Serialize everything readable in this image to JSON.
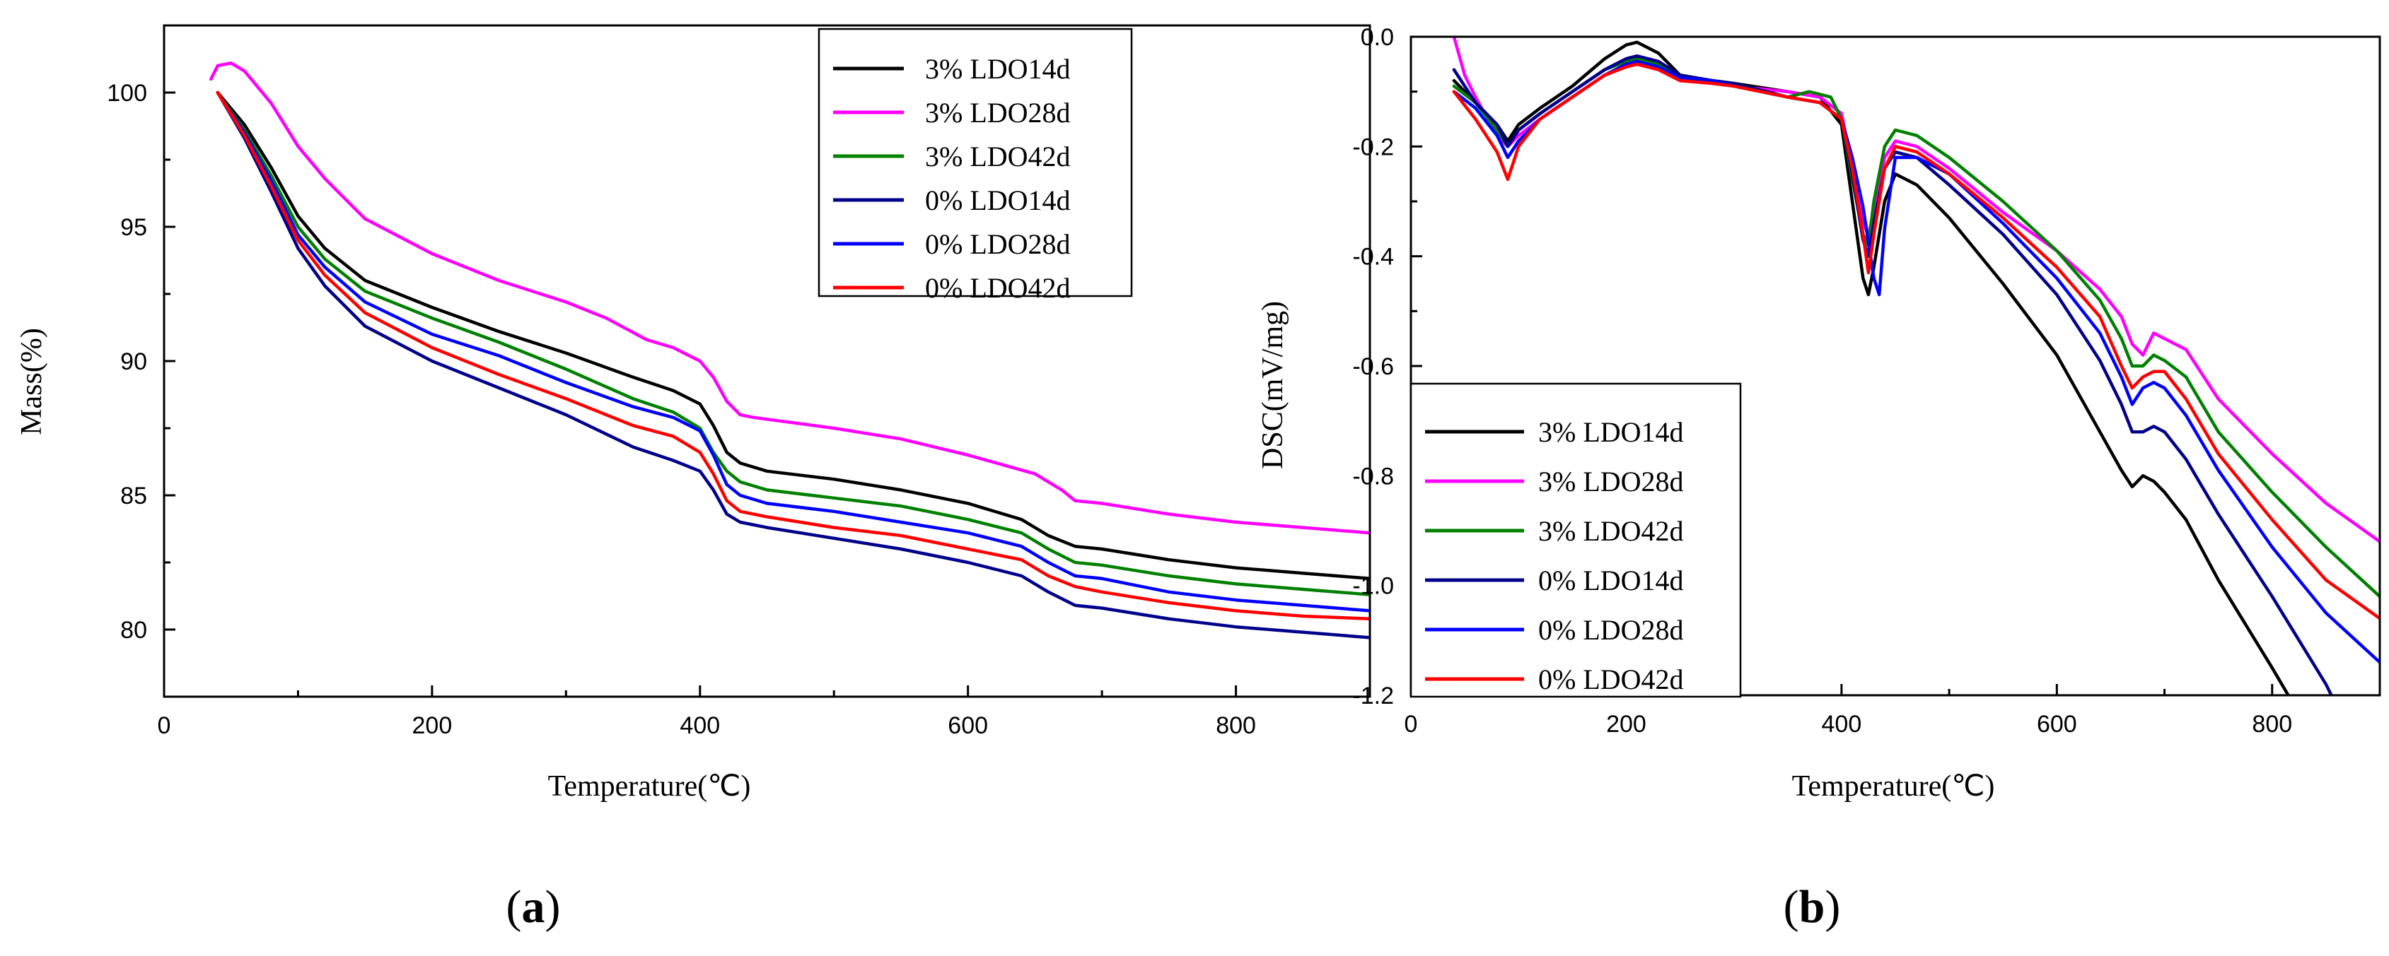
{
  "chart_data": [
    {
      "type": "line",
      "panel": "(a)",
      "panel_letter": "a",
      "xlabel": "Temperature(℃)",
      "ylabel": "Mass(%)",
      "xlim": [
        0,
        900
      ],
      "ylim": [
        77.5,
        102.5
      ],
      "xticks": [
        0,
        200,
        400,
        600,
        800
      ],
      "yticks": [
        80,
        85,
        90,
        95,
        100
      ],
      "legend_position": "top-right",
      "series": [
        {
          "name": "3% LDO14d",
          "color": "#000000",
          "x": [
            40,
            60,
            80,
            100,
            120,
            150,
            200,
            250,
            300,
            350,
            380,
            400,
            410,
            420,
            430,
            450,
            500,
            550,
            600,
            640,
            660,
            680,
            700,
            750,
            800,
            850,
            900
          ],
          "y": [
            100,
            98.8,
            97.2,
            95.4,
            94.2,
            93.0,
            92.0,
            91.1,
            90.3,
            89.4,
            88.9,
            88.4,
            87.6,
            86.6,
            86.2,
            85.9,
            85.6,
            85.2,
            84.7,
            84.1,
            83.5,
            83.1,
            83.0,
            82.6,
            82.3,
            82.1,
            81.9
          ]
        },
        {
          "name": "3% LDO28d",
          "color": "#ff00ff",
          "x": [
            35,
            40,
            50,
            60,
            80,
            100,
            120,
            150,
            200,
            250,
            300,
            330,
            360,
            380,
            400,
            410,
            420,
            430,
            440,
            500,
            550,
            600,
            650,
            670,
            680,
            700,
            750,
            800,
            850,
            900
          ],
          "y": [
            100.5,
            101.0,
            101.1,
            100.8,
            99.6,
            98.0,
            96.8,
            95.3,
            94.0,
            93.0,
            92.2,
            91.6,
            90.8,
            90.5,
            90.0,
            89.4,
            88.5,
            88.0,
            87.9,
            87.5,
            87.1,
            86.5,
            85.8,
            85.2,
            84.8,
            84.7,
            84.3,
            84.0,
            83.8,
            83.6
          ]
        },
        {
          "name": "3% LDO42d",
          "color": "#008000",
          "x": [
            40,
            60,
            80,
            100,
            120,
            150,
            200,
            250,
            300,
            350,
            380,
            400,
            410,
            420,
            430,
            450,
            500,
            550,
            600,
            640,
            660,
            680,
            700,
            750,
            800,
            850,
            900
          ],
          "y": [
            100,
            98.6,
            96.9,
            95.0,
            93.8,
            92.6,
            91.6,
            90.7,
            89.7,
            88.6,
            88.1,
            87.5,
            86.6,
            85.9,
            85.5,
            85.2,
            84.9,
            84.6,
            84.1,
            83.6,
            83.0,
            82.5,
            82.4,
            82.0,
            81.7,
            81.5,
            81.3
          ]
        },
        {
          "name": "0% LDO14d",
          "color": "#00008b",
          "x": [
            40,
            60,
            80,
            100,
            120,
            150,
            200,
            250,
            300,
            350,
            380,
            400,
            410,
            420,
            430,
            450,
            500,
            550,
            600,
            640,
            660,
            680,
            700,
            750,
            800,
            850,
            900
          ],
          "y": [
            100,
            98.3,
            96.3,
            94.2,
            92.8,
            91.3,
            90.0,
            89.0,
            88.0,
            86.8,
            86.3,
            85.9,
            85.2,
            84.3,
            84.0,
            83.8,
            83.4,
            83.0,
            82.5,
            82.0,
            81.4,
            80.9,
            80.8,
            80.4,
            80.1,
            79.9,
            79.7
          ]
        },
        {
          "name": "0% LDO28d",
          "color": "#0000ff",
          "x": [
            40,
            60,
            80,
            100,
            120,
            150,
            200,
            250,
            300,
            350,
            380,
            400,
            410,
            420,
            430,
            450,
            500,
            550,
            600,
            640,
            660,
            680,
            700,
            750,
            800,
            850,
            900
          ],
          "y": [
            100,
            98.5,
            96.7,
            94.7,
            93.5,
            92.2,
            91.0,
            90.2,
            89.2,
            88.3,
            87.9,
            87.4,
            86.5,
            85.4,
            85.0,
            84.7,
            84.4,
            84.0,
            83.6,
            83.1,
            82.5,
            82.0,
            81.9,
            81.4,
            81.1,
            80.9,
            80.7
          ]
        },
        {
          "name": "0% LDO42d",
          "color": "#ff0000",
          "x": [
            40,
            60,
            80,
            100,
            120,
            150,
            200,
            250,
            300,
            350,
            380,
            400,
            410,
            420,
            430,
            450,
            500,
            550,
            600,
            640,
            660,
            680,
            700,
            750,
            800,
            850,
            900
          ],
          "y": [
            100,
            98.4,
            96.5,
            94.5,
            93.2,
            91.8,
            90.5,
            89.5,
            88.6,
            87.6,
            87.2,
            86.6,
            85.8,
            84.8,
            84.4,
            84.2,
            83.8,
            83.5,
            83.0,
            82.6,
            82.0,
            81.6,
            81.4,
            81.0,
            80.7,
            80.5,
            80.4
          ]
        }
      ]
    },
    {
      "type": "line",
      "panel": "(b)",
      "panel_letter": "b",
      "xlabel": "Temperature(℃)",
      "ylabel": "DSC(mV/mg)",
      "xlim": [
        0,
        900
      ],
      "ylim": [
        -1.2,
        0.0
      ],
      "xticks": [
        0,
        200,
        400,
        600,
        800
      ],
      "yticks": [
        0.0,
        -0.2,
        -0.4,
        -0.6,
        -0.8,
        -1.0,
        -1.2
      ],
      "ytick_labels": [
        "0.0",
        "-0.2",
        "-0.4",
        "-0.6",
        "-0.8",
        "-1.0",
        "-1.2"
      ],
      "legend_position": "bottom-left",
      "series": [
        {
          "name": "3% LDO14d",
          "color": "#000000",
          "x": [
            40,
            60,
            80,
            90,
            100,
            120,
            150,
            180,
            200,
            210,
            230,
            250,
            280,
            300,
            350,
            380,
            400,
            410,
            420,
            425,
            430,
            440,
            450,
            470,
            500,
            550,
            600,
            640,
            660,
            670,
            680,
            690,
            700,
            720,
            750,
            800,
            815
          ],
          "y": [
            -0.08,
            -0.12,
            -0.16,
            -0.19,
            -0.16,
            -0.13,
            -0.09,
            -0.04,
            -0.015,
            -0.01,
            -0.03,
            -0.07,
            -0.08,
            -0.085,
            -0.1,
            -0.11,
            -0.16,
            -0.3,
            -0.44,
            -0.47,
            -0.42,
            -0.3,
            -0.25,
            -0.27,
            -0.33,
            -0.45,
            -0.58,
            -0.72,
            -0.79,
            -0.82,
            -0.8,
            -0.81,
            -0.83,
            -0.88,
            -0.99,
            -1.15,
            -1.2
          ]
        },
        {
          "name": "3% LDO28d",
          "color": "#ff00ff",
          "x": [
            40,
            50,
            60,
            80,
            90,
            100,
            120,
            150,
            180,
            200,
            210,
            230,
            250,
            280,
            300,
            350,
            380,
            400,
            410,
            420,
            425,
            430,
            440,
            450,
            470,
            500,
            550,
            600,
            640,
            660,
            670,
            680,
            690,
            700,
            720,
            750,
            800,
            850,
            900
          ],
          "y": [
            0.0,
            -0.07,
            -0.11,
            -0.18,
            -0.2,
            -0.18,
            -0.15,
            -0.11,
            -0.07,
            -0.055,
            -0.05,
            -0.06,
            -0.08,
            -0.085,
            -0.09,
            -0.1,
            -0.11,
            -0.14,
            -0.24,
            -0.34,
            -0.36,
            -0.32,
            -0.22,
            -0.19,
            -0.2,
            -0.24,
            -0.32,
            -0.39,
            -0.46,
            -0.51,
            -0.56,
            -0.58,
            -0.54,
            -0.55,
            -0.57,
            -0.66,
            -0.76,
            -0.85,
            -0.92
          ]
        },
        {
          "name": "3% LDO42d",
          "color": "#008000",
          "x": [
            40,
            60,
            80,
            90,
            100,
            120,
            150,
            180,
            200,
            210,
            230,
            250,
            280,
            300,
            350,
            370,
            390,
            400,
            410,
            420,
            425,
            430,
            440,
            450,
            470,
            500,
            550,
            600,
            640,
            660,
            670,
            680,
            690,
            700,
            720,
            750,
            800,
            850,
            900
          ],
          "y": [
            -0.09,
            -0.12,
            -0.17,
            -0.2,
            -0.17,
            -0.14,
            -0.1,
            -0.06,
            -0.045,
            -0.04,
            -0.05,
            -0.075,
            -0.08,
            -0.085,
            -0.11,
            -0.1,
            -0.11,
            -0.15,
            -0.26,
            -0.36,
            -0.38,
            -0.3,
            -0.2,
            -0.17,
            -0.18,
            -0.22,
            -0.3,
            -0.39,
            -0.48,
            -0.55,
            -0.6,
            -0.6,
            -0.58,
            -0.59,
            -0.62,
            -0.72,
            -0.83,
            -0.93,
            -1.02
          ]
        },
        {
          "name": "0% LDO14d",
          "color": "#00008b",
          "x": [
            40,
            60,
            80,
            90,
            100,
            120,
            150,
            180,
            200,
            210,
            230,
            250,
            280,
            300,
            350,
            380,
            400,
            410,
            420,
            425,
            430,
            440,
            450,
            470,
            500,
            550,
            600,
            640,
            660,
            670,
            680,
            690,
            700,
            720,
            750,
            800,
            850,
            855
          ],
          "y": [
            -0.06,
            -0.12,
            -0.16,
            -0.2,
            -0.17,
            -0.14,
            -0.1,
            -0.06,
            -0.04,
            -0.035,
            -0.045,
            -0.07,
            -0.08,
            -0.085,
            -0.11,
            -0.12,
            -0.15,
            -0.25,
            -0.37,
            -0.4,
            -0.34,
            -0.24,
            -0.21,
            -0.22,
            -0.27,
            -0.36,
            -0.47,
            -0.59,
            -0.67,
            -0.72,
            -0.72,
            -0.71,
            -0.72,
            -0.77,
            -0.87,
            -1.02,
            -1.18,
            -1.2
          ]
        },
        {
          "name": "0% LDO28d",
          "color": "#0000ff",
          "x": [
            40,
            60,
            80,
            90,
            100,
            120,
            150,
            180,
            200,
            210,
            230,
            250,
            280,
            300,
            350,
            380,
            400,
            410,
            420,
            430,
            435,
            440,
            450,
            470,
            500,
            550,
            600,
            640,
            660,
            670,
            680,
            690,
            700,
            720,
            750,
            800,
            850,
            900
          ],
          "y": [
            -0.1,
            -0.13,
            -0.18,
            -0.22,
            -0.19,
            -0.15,
            -0.11,
            -0.07,
            -0.05,
            -0.045,
            -0.055,
            -0.075,
            -0.08,
            -0.09,
            -0.11,
            -0.12,
            -0.15,
            -0.22,
            -0.31,
            -0.44,
            -0.47,
            -0.35,
            -0.22,
            -0.22,
            -0.25,
            -0.34,
            -0.44,
            -0.54,
            -0.62,
            -0.67,
            -0.64,
            -0.63,
            -0.64,
            -0.69,
            -0.79,
            -0.93,
            -1.05,
            -1.14
          ]
        },
        {
          "name": "0% LDO42d",
          "color": "#ff0000",
          "x": [
            40,
            60,
            80,
            90,
            100,
            120,
            150,
            180,
            200,
            210,
            230,
            250,
            280,
            300,
            350,
            380,
            400,
            410,
            420,
            425,
            430,
            440,
            450,
            470,
            500,
            550,
            600,
            640,
            660,
            670,
            680,
            690,
            700,
            720,
            750,
            800,
            850,
            900
          ],
          "y": [
            -0.1,
            -0.15,
            -0.21,
            -0.26,
            -0.2,
            -0.15,
            -0.11,
            -0.07,
            -0.055,
            -0.05,
            -0.06,
            -0.08,
            -0.085,
            -0.09,
            -0.11,
            -0.12,
            -0.15,
            -0.24,
            -0.36,
            -0.43,
            -0.36,
            -0.24,
            -0.2,
            -0.21,
            -0.25,
            -0.33,
            -0.42,
            -0.51,
            -0.6,
            -0.64,
            -0.62,
            -0.61,
            -0.61,
            -0.66,
            -0.76,
            -0.88,
            -0.99,
            -1.06
          ]
        }
      ]
    }
  ]
}
